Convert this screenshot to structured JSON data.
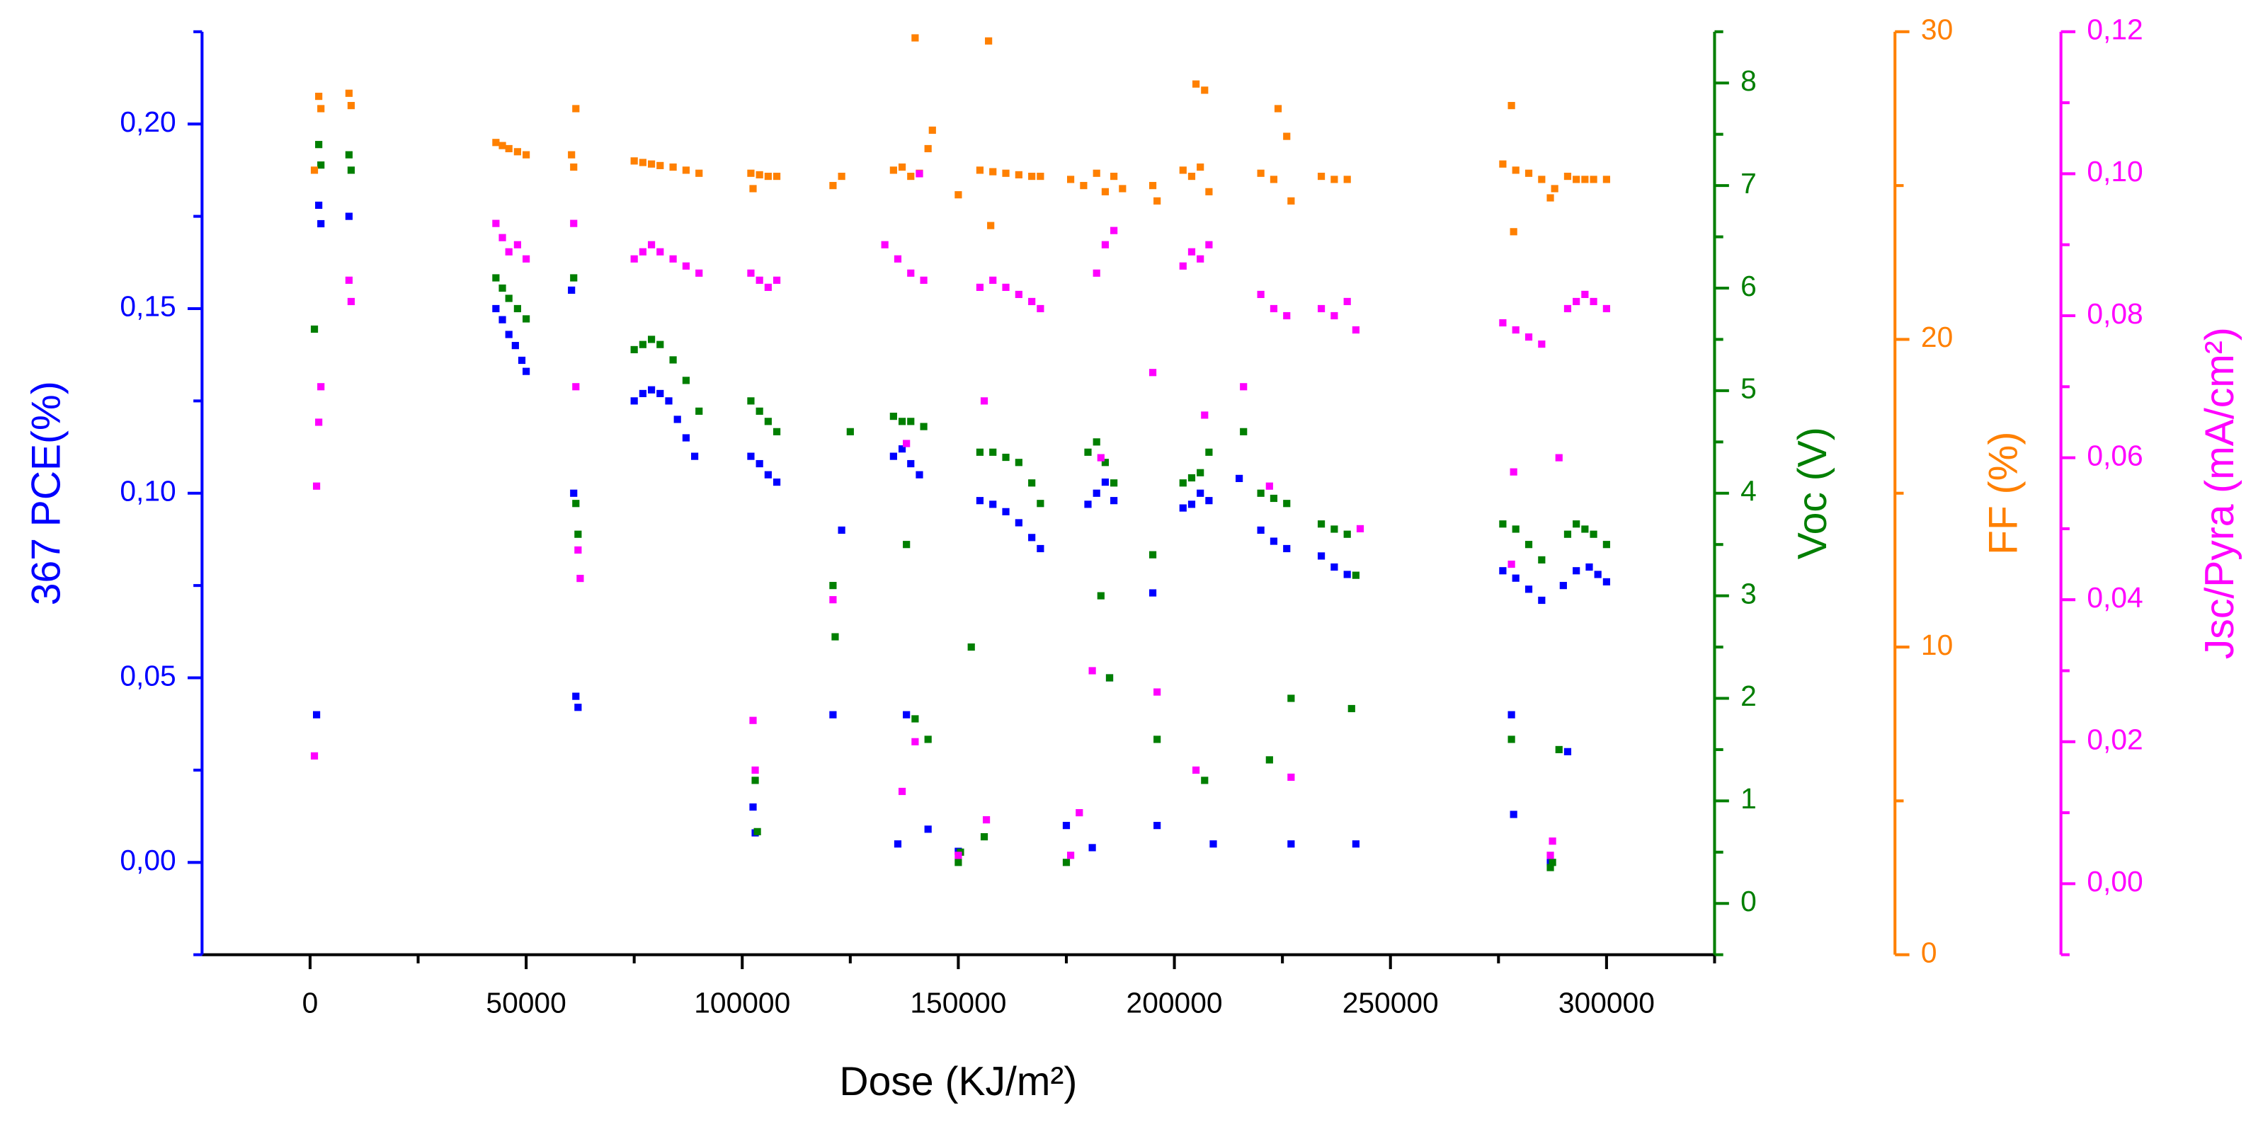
{
  "chart_data": {
    "type": "scatter",
    "xlabel": "Dose (KJ/m²)",
    "ylabel": "367 PCE(%)",
    "y2label": "Voc (V)",
    "y3label": "FF (%)",
    "y4label": "Jsc/Pyra (mA/cm²)",
    "xlim": [
      -25000,
      325000
    ],
    "xticks": [
      0,
      50000,
      100000,
      150000,
      200000,
      250000,
      300000
    ],
    "xminor": [
      25000,
      75000,
      125000,
      175000,
      225000,
      275000,
      325000
    ],
    "ylim": [
      -0.025,
      0.225
    ],
    "yticks": [
      {
        "value": 0,
        "label": "0,00"
      },
      {
        "value": 0.05,
        "label": "0,05"
      },
      {
        "value": 0.1,
        "label": "0,10"
      },
      {
        "value": 0.15,
        "label": "0,15"
      },
      {
        "value": 0.2,
        "label": "0,20"
      }
    ],
    "yminor": [
      -0.025,
      0.025,
      0.075,
      0.125,
      0.175,
      0.225
    ],
    "y2lim": [
      -0.5,
      8.5
    ],
    "y2ticks": [
      0,
      1,
      2,
      3,
      4,
      5,
      6,
      7,
      8
    ],
    "y2minor": [
      -0.5,
      0.5,
      1.5,
      2.5,
      3.5,
      4.5,
      5.5,
      6.5,
      7.5,
      8.5
    ],
    "y3lim": [
      0,
      30
    ],
    "y3ticks": [
      0,
      10,
      20,
      30
    ],
    "y3minor": [
      5,
      15,
      25
    ],
    "y4lim": [
      -0.01,
      0.12
    ],
    "y4ticks": [
      {
        "value": 0,
        "label": "0,00"
      },
      {
        "value": 0.02,
        "label": "0,02"
      },
      {
        "value": 0.04,
        "label": "0,04"
      },
      {
        "value": 0.06,
        "label": "0,06"
      },
      {
        "value": 0.08,
        "label": "0,08"
      },
      {
        "value": 0.1,
        "label": "0,10"
      },
      {
        "value": 0.12,
        "label": "0,12"
      }
    ],
    "y4minor": [
      -0.01,
      0.01,
      0.03,
      0.05,
      0.07,
      0.09,
      0.11
    ],
    "axis_colors": {
      "y": "#0000ff",
      "y2": "#007f00",
      "y3": "#ff8000",
      "y4": "#ff00ff"
    },
    "series": [
      {
        "axis": "y",
        "color": "#0000ff",
        "x": [
          2000,
          2500,
          1500,
          9000,
          43000,
          44500,
          46000,
          47500,
          49000,
          50000,
          60500,
          61000,
          61500,
          62000,
          75000,
          77000,
          79000,
          81000,
          83000,
          85000,
          87000,
          89000,
          102000,
          104000,
          106000,
          108000,
          102500,
          103000,
          121000,
          123000,
          135000,
          137000,
          139000,
          141000,
          136000,
          138000,
          143000,
          150000,
          155000,
          158000,
          161000,
          164000,
          167000,
          169000,
          175000,
          180000,
          182000,
          184000,
          186000,
          181000,
          185000,
          195000,
          196000,
          202000,
          204000,
          206000,
          208000,
          209000,
          215000,
          220000,
          223000,
          226000,
          227000,
          234000,
          237000,
          240000,
          242000,
          276000,
          279000,
          282000,
          285000,
          278000,
          278500,
          287000,
          290000,
          293000,
          296000,
          298000,
          300000,
          291000
        ],
        "values": [
          0.178,
          0.173,
          0.04,
          0.175,
          0.15,
          0.147,
          0.143,
          0.14,
          0.136,
          0.133,
          0.155,
          0.1,
          0.045,
          0.042,
          0.125,
          0.127,
          0.128,
          0.127,
          0.125,
          0.12,
          0.115,
          0.11,
          0.11,
          0.108,
          0.105,
          0.103,
          0.015,
          0.008,
          0.04,
          0.09,
          0.11,
          0.112,
          0.108,
          0.105,
          0.005,
          0.04,
          0.009,
          0.003,
          0.098,
          0.097,
          0.095,
          0.092,
          0.088,
          0.085,
          0.01,
          0.097,
          0.1,
          0.103,
          0.098,
          0.004,
          0.05,
          0.073,
          0.01,
          0.096,
          0.097,
          0.1,
          0.098,
          0.005,
          0.104,
          0.09,
          0.087,
          0.085,
          0.005,
          0.083,
          0.08,
          0.078,
          0.005,
          0.079,
          0.077,
          0.074,
          0.071,
          0.04,
          0.013,
          0.0,
          0.075,
          0.079,
          0.08,
          0.078,
          0.076,
          0.03
        ]
      },
      {
        "axis": "y2",
        "color": "#007f00",
        "x": [
          1000,
          2000,
          2500,
          9000,
          9500,
          43000,
          44500,
          46000,
          48000,
          50000,
          61000,
          61500,
          62000,
          75000,
          77000,
          79000,
          81000,
          84000,
          87000,
          90000,
          102000,
          104000,
          106000,
          108000,
          103000,
          103500,
          121000,
          121500,
          125000,
          135000,
          137000,
          139000,
          142000,
          138000,
          140000,
          143000,
          150000,
          150500,
          153000,
          155000,
          158000,
          161000,
          164000,
          167000,
          169000,
          156000,
          175000,
          180000,
          182000,
          184000,
          186000,
          183000,
          185000,
          195000,
          196000,
          202000,
          204000,
          206000,
          208000,
          207000,
          216000,
          220000,
          223000,
          226000,
          222000,
          227000,
          234000,
          237000,
          240000,
          242000,
          241000,
          276000,
          279000,
          282000,
          285000,
          278000,
          287000,
          287500,
          289000,
          291000,
          293000,
          295000,
          297000,
          300000
        ],
        "values": [
          5.6,
          7.4,
          7.2,
          7.3,
          7.15,
          6.1,
          6.0,
          5.9,
          5.8,
          5.7,
          6.1,
          3.9,
          3.6,
          5.4,
          5.45,
          5.5,
          5.45,
          5.3,
          5.1,
          4.8,
          4.9,
          4.8,
          4.7,
          4.6,
          1.2,
          0.7,
          3.1,
          2.6,
          4.6,
          4.75,
          4.7,
          4.7,
          4.65,
          3.5,
          1.8,
          1.6,
          0.4,
          0.5,
          2.5,
          4.4,
          4.4,
          4.35,
          4.3,
          4.1,
          3.9,
          0.65,
          0.4,
          4.4,
          4.5,
          4.3,
          4.1,
          3.0,
          2.2,
          3.4,
          1.6,
          4.1,
          4.15,
          4.2,
          4.4,
          1.2,
          4.6,
          4.0,
          3.95,
          3.9,
          1.4,
          2.0,
          3.7,
          3.65,
          3.6,
          3.2,
          1.9,
          3.7,
          3.65,
          3.5,
          3.35,
          1.6,
          0.35,
          0.4,
          1.5,
          3.6,
          3.7,
          3.65,
          3.6,
          3.5
        ]
      },
      {
        "axis": "y3",
        "color": "#ff8000",
        "x": [
          1000,
          2000,
          2500,
          9000,
          9500,
          43000,
          44500,
          46000,
          48000,
          50000,
          60500,
          61000,
          61500,
          75000,
          77000,
          79000,
          81000,
          84000,
          87000,
          90000,
          102000,
          104000,
          106000,
          108000,
          102500,
          121000,
          123000,
          135000,
          137000,
          139000,
          141000,
          143000,
          140000,
          144000,
          150000,
          155000,
          158000,
          161000,
          164000,
          167000,
          169000,
          157000,
          157500,
          176000,
          179000,
          182000,
          184000,
          186000,
          188000,
          195000,
          196000,
          202000,
          204000,
          206000,
          205000,
          207000,
          208000,
          220000,
          223000,
          224000,
          226000,
          227000,
          234000,
          237000,
          240000,
          276000,
          279000,
          282000,
          285000,
          278000,
          278500,
          287000,
          288000,
          291000,
          293000,
          295000,
          297000,
          300000
        ],
        "values": [
          25.5,
          27.9,
          27.5,
          28,
          27.6,
          26.4,
          26.3,
          26.2,
          26.1,
          26.0,
          26,
          25.6,
          27.5,
          25.8,
          25.75,
          25.7,
          25.65,
          25.6,
          25.5,
          25.4,
          25.4,
          25.35,
          25.3,
          25.3,
          24.9,
          25.0,
          25.3,
          25.5,
          25.6,
          25.3,
          25.4,
          26.2,
          29.8,
          26.8,
          24.7,
          25.5,
          25.45,
          25.4,
          25.35,
          25.3,
          25.3,
          29.7,
          23.7,
          25.2,
          25.0,
          25.4,
          24.8,
          25.3,
          24.9,
          25.0,
          24.5,
          25.5,
          25.3,
          25.6,
          28.3,
          28.1,
          24.8,
          25.4,
          25.2,
          27.5,
          26.6,
          24.5,
          25.3,
          25.2,
          25.2,
          25.7,
          25.5,
          25.4,
          25.2,
          27.6,
          23.5,
          24.6,
          24.9,
          25.3,
          25.2,
          25.2,
          25.2,
          25.2
        ]
      },
      {
        "axis": "y4",
        "color": "#ff00ff",
        "x": [
          1000,
          1500,
          2000,
          2500,
          9000,
          9500,
          43000,
          44500,
          46000,
          48000,
          50000,
          61000,
          61500,
          62000,
          62500,
          75000,
          77000,
          79000,
          81000,
          84000,
          87000,
          90000,
          102000,
          104000,
          106000,
          108000,
          102500,
          103000,
          121000,
          133000,
          136000,
          139000,
          142000,
          141000,
          138000,
          137000,
          140000,
          150000,
          155000,
          158000,
          161000,
          164000,
          167000,
          169000,
          156000,
          156500,
          176000,
          178000,
          182000,
          184000,
          186000,
          183000,
          181000,
          195000,
          196000,
          202000,
          204000,
          206000,
          208000,
          207000,
          205000,
          216000,
          220000,
          223000,
          226000,
          222000,
          227000,
          234000,
          237000,
          240000,
          242000,
          243000,
          276000,
          279000,
          282000,
          285000,
          278000,
          278500,
          287000,
          287500,
          289000,
          291000,
          293000,
          295000,
          297000,
          300000
        ],
        "values": [
          0.018,
          0.056,
          0.065,
          0.07,
          0.085,
          0.082,
          0.093,
          0.091,
          0.089,
          0.09,
          0.088,
          0.093,
          0.07,
          0.047,
          0.043,
          0.088,
          0.089,
          0.09,
          0.089,
          0.088,
          0.087,
          0.086,
          0.086,
          0.085,
          0.084,
          0.085,
          0.023,
          0.016,
          0.04,
          0.09,
          0.088,
          0.086,
          0.085,
          0.1,
          0.062,
          0.013,
          0.02,
          0.004,
          0.084,
          0.085,
          0.084,
          0.083,
          0.082,
          0.081,
          0.068,
          0.009,
          0.004,
          0.01,
          0.086,
          0.09,
          0.092,
          0.06,
          0.03,
          0.072,
          0.027,
          0.087,
          0.089,
          0.088,
          0.09,
          0.066,
          0.016,
          0.07,
          0.083,
          0.081,
          0.08,
          0.056,
          0.015,
          0.081,
          0.08,
          0.082,
          0.078,
          0.05,
          0.079,
          0.078,
          0.077,
          0.076,
          0.045,
          0.058,
          0.004,
          0.006,
          0.06,
          0.081,
          0.082,
          0.083,
          0.082,
          0.081
        ]
      }
    ]
  }
}
